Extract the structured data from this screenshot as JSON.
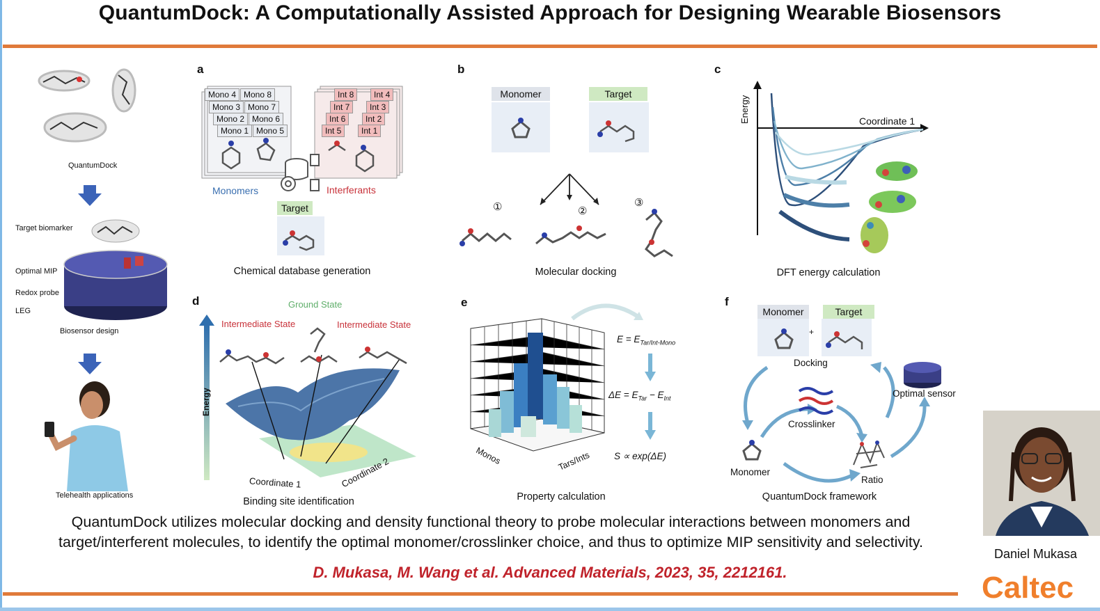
{
  "header": {
    "title": "QuantumDock: A Computationally Assisted Approach for Designing Wearable Biosensors"
  },
  "left_column": {
    "quantumdock_label": "QuantumDock",
    "target_biomarker": "Target biomarker",
    "optimal_mip": "Optimal MIP",
    "redox_probe": "Redox probe",
    "leg": "LEG",
    "biosensor_design": "Biosensor design",
    "telehealth": "Telehealth applications"
  },
  "panel_a": {
    "letter": "a",
    "mono_cards": [
      "Mono 4",
      "Mono 8",
      "Mono 3",
      "Mono 7",
      "Mono 2",
      "Mono 6",
      "Mono 1",
      "Mono 5"
    ],
    "int_cards": [
      "Int 8",
      "Int 4",
      "Int 7",
      "Int 3",
      "Int 6",
      "Int 2",
      "Int 5",
      "Int 1"
    ],
    "monomers": "Monomers",
    "interferants": "Interferants",
    "target": "Target",
    "caption": "Chemical database generation"
  },
  "panel_b": {
    "letter": "b",
    "monomer": "Monomer",
    "target": "Target",
    "poses": [
      "①",
      "②",
      "③"
    ],
    "caption": "Molecular docking"
  },
  "panel_c": {
    "letter": "c",
    "y_axis": "Energy",
    "x_axis": "Coordinate 1",
    "caption": "DFT energy calculation"
  },
  "panel_d": {
    "letter": "d",
    "ground_state": "Ground State",
    "intermediate_left": "Intermediate State",
    "intermediate_right": "Intermediate State",
    "y_axis": "Energy",
    "coord1": "Coordinate 1",
    "coord2": "Coordinate 2",
    "caption": "Binding site identification"
  },
  "panel_e": {
    "letter": "e",
    "axis_monos": "Monos",
    "axis_tars": "Tars/Ints",
    "eq1": "E = E",
    "eq1_sub": "Tar/Int-Mono",
    "eq2_a": "ΔE = E",
    "eq2_sub1": "Tar",
    "eq2_b": " − E",
    "eq2_sub2": "Int",
    "eq3": "S ∝ exp(ΔE)",
    "caption": "Property calculation"
  },
  "panel_f": {
    "letter": "f",
    "monomer_tag": "Monomer",
    "target_tag": "Target",
    "plus": "+",
    "docking": "Docking",
    "crosslinker": "Crosslinker",
    "optimal_sensor": "Optimal sensor",
    "monomer": "Monomer",
    "ratio": "Ratio",
    "caption": "QuantumDock framework"
  },
  "summary": {
    "line1": "QuantumDock utilizes molecular docking and density functional theory to probe molecular interactions between monomers and",
    "line2": "target/interferent molecules, to identify the optimal monomer/crosslinker choice, and thus to optimize MIP sensitivity and selectivity."
  },
  "citation": "D. Mukasa, M. Wang et al. Advanced Materials, 2023, 35, 2212161.",
  "speaker": {
    "name": "Daniel Mukasa"
  },
  "logo": "Caltec",
  "colors": {
    "accent_orange": "#e07a3a",
    "citation_red": "#c0232b",
    "mono_blue": "#3a6fb0",
    "int_red": "#c8323a",
    "ground_green": "#5fae6a",
    "logo_orange": "#f07f2c"
  },
  "chart_data": {
    "type": "bar3d",
    "x_axis": "Monos",
    "y_axis": "Tars/Ints",
    "values": []
  }
}
